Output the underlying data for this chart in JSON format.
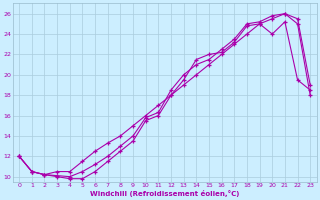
{
  "xlabel": "Windchill (Refroidissement éolien,°C)",
  "background_color": "#cceeff",
  "line_color": "#aa00aa",
  "grid_color": "#aaccdd",
  "xlim": [
    -0.5,
    23.5
  ],
  "ylim": [
    9.5,
    27
  ],
  "xticks": [
    0,
    1,
    2,
    3,
    4,
    5,
    6,
    7,
    8,
    9,
    10,
    11,
    12,
    13,
    14,
    15,
    16,
    17,
    18,
    19,
    20,
    21,
    22,
    23
  ],
  "yticks": [
    10,
    12,
    14,
    16,
    18,
    20,
    22,
    24,
    26
  ],
  "curve1_x": [
    0,
    1,
    2,
    3,
    4,
    5,
    6,
    7,
    8,
    9,
    10,
    11,
    12,
    13,
    14,
    15,
    16,
    17,
    18,
    19,
    20,
    21,
    22,
    23
  ],
  "curve1_y": [
    12.0,
    10.5,
    10.2,
    10.1,
    10.0,
    10.5,
    11.2,
    12.0,
    13.0,
    14.0,
    15.8,
    16.3,
    18.5,
    20.0,
    21.0,
    21.5,
    22.5,
    23.5,
    25.0,
    25.2,
    25.8,
    26.0,
    25.5,
    19.0
  ],
  "curve2_x": [
    0,
    1,
    2,
    3,
    4,
    5,
    6,
    7,
    8,
    9,
    10,
    11,
    12,
    13,
    14,
    15,
    16,
    17,
    18,
    19,
    20,
    21,
    22,
    23
  ],
  "curve2_y": [
    12.0,
    10.5,
    10.2,
    10.0,
    9.8,
    9.8,
    10.5,
    11.5,
    12.5,
    13.5,
    15.5,
    16.0,
    18.0,
    19.5,
    21.5,
    22.0,
    22.2,
    23.2,
    24.8,
    25.0,
    24.0,
    25.2,
    19.5,
    18.5
  ],
  "curve3_x": [
    0,
    1,
    2,
    3,
    4,
    5,
    6,
    7,
    8,
    9,
    10,
    11,
    12,
    13,
    14,
    15,
    16,
    17,
    18,
    19,
    20,
    21,
    22,
    23
  ],
  "curve3_y": [
    12.0,
    10.5,
    10.2,
    10.5,
    10.5,
    11.5,
    12.5,
    13.3,
    14.0,
    15.0,
    16.0,
    17.0,
    18.0,
    19.0,
    20.0,
    21.0,
    22.0,
    23.0,
    24.0,
    25.0,
    25.5,
    26.0,
    25.0,
    18.0
  ]
}
